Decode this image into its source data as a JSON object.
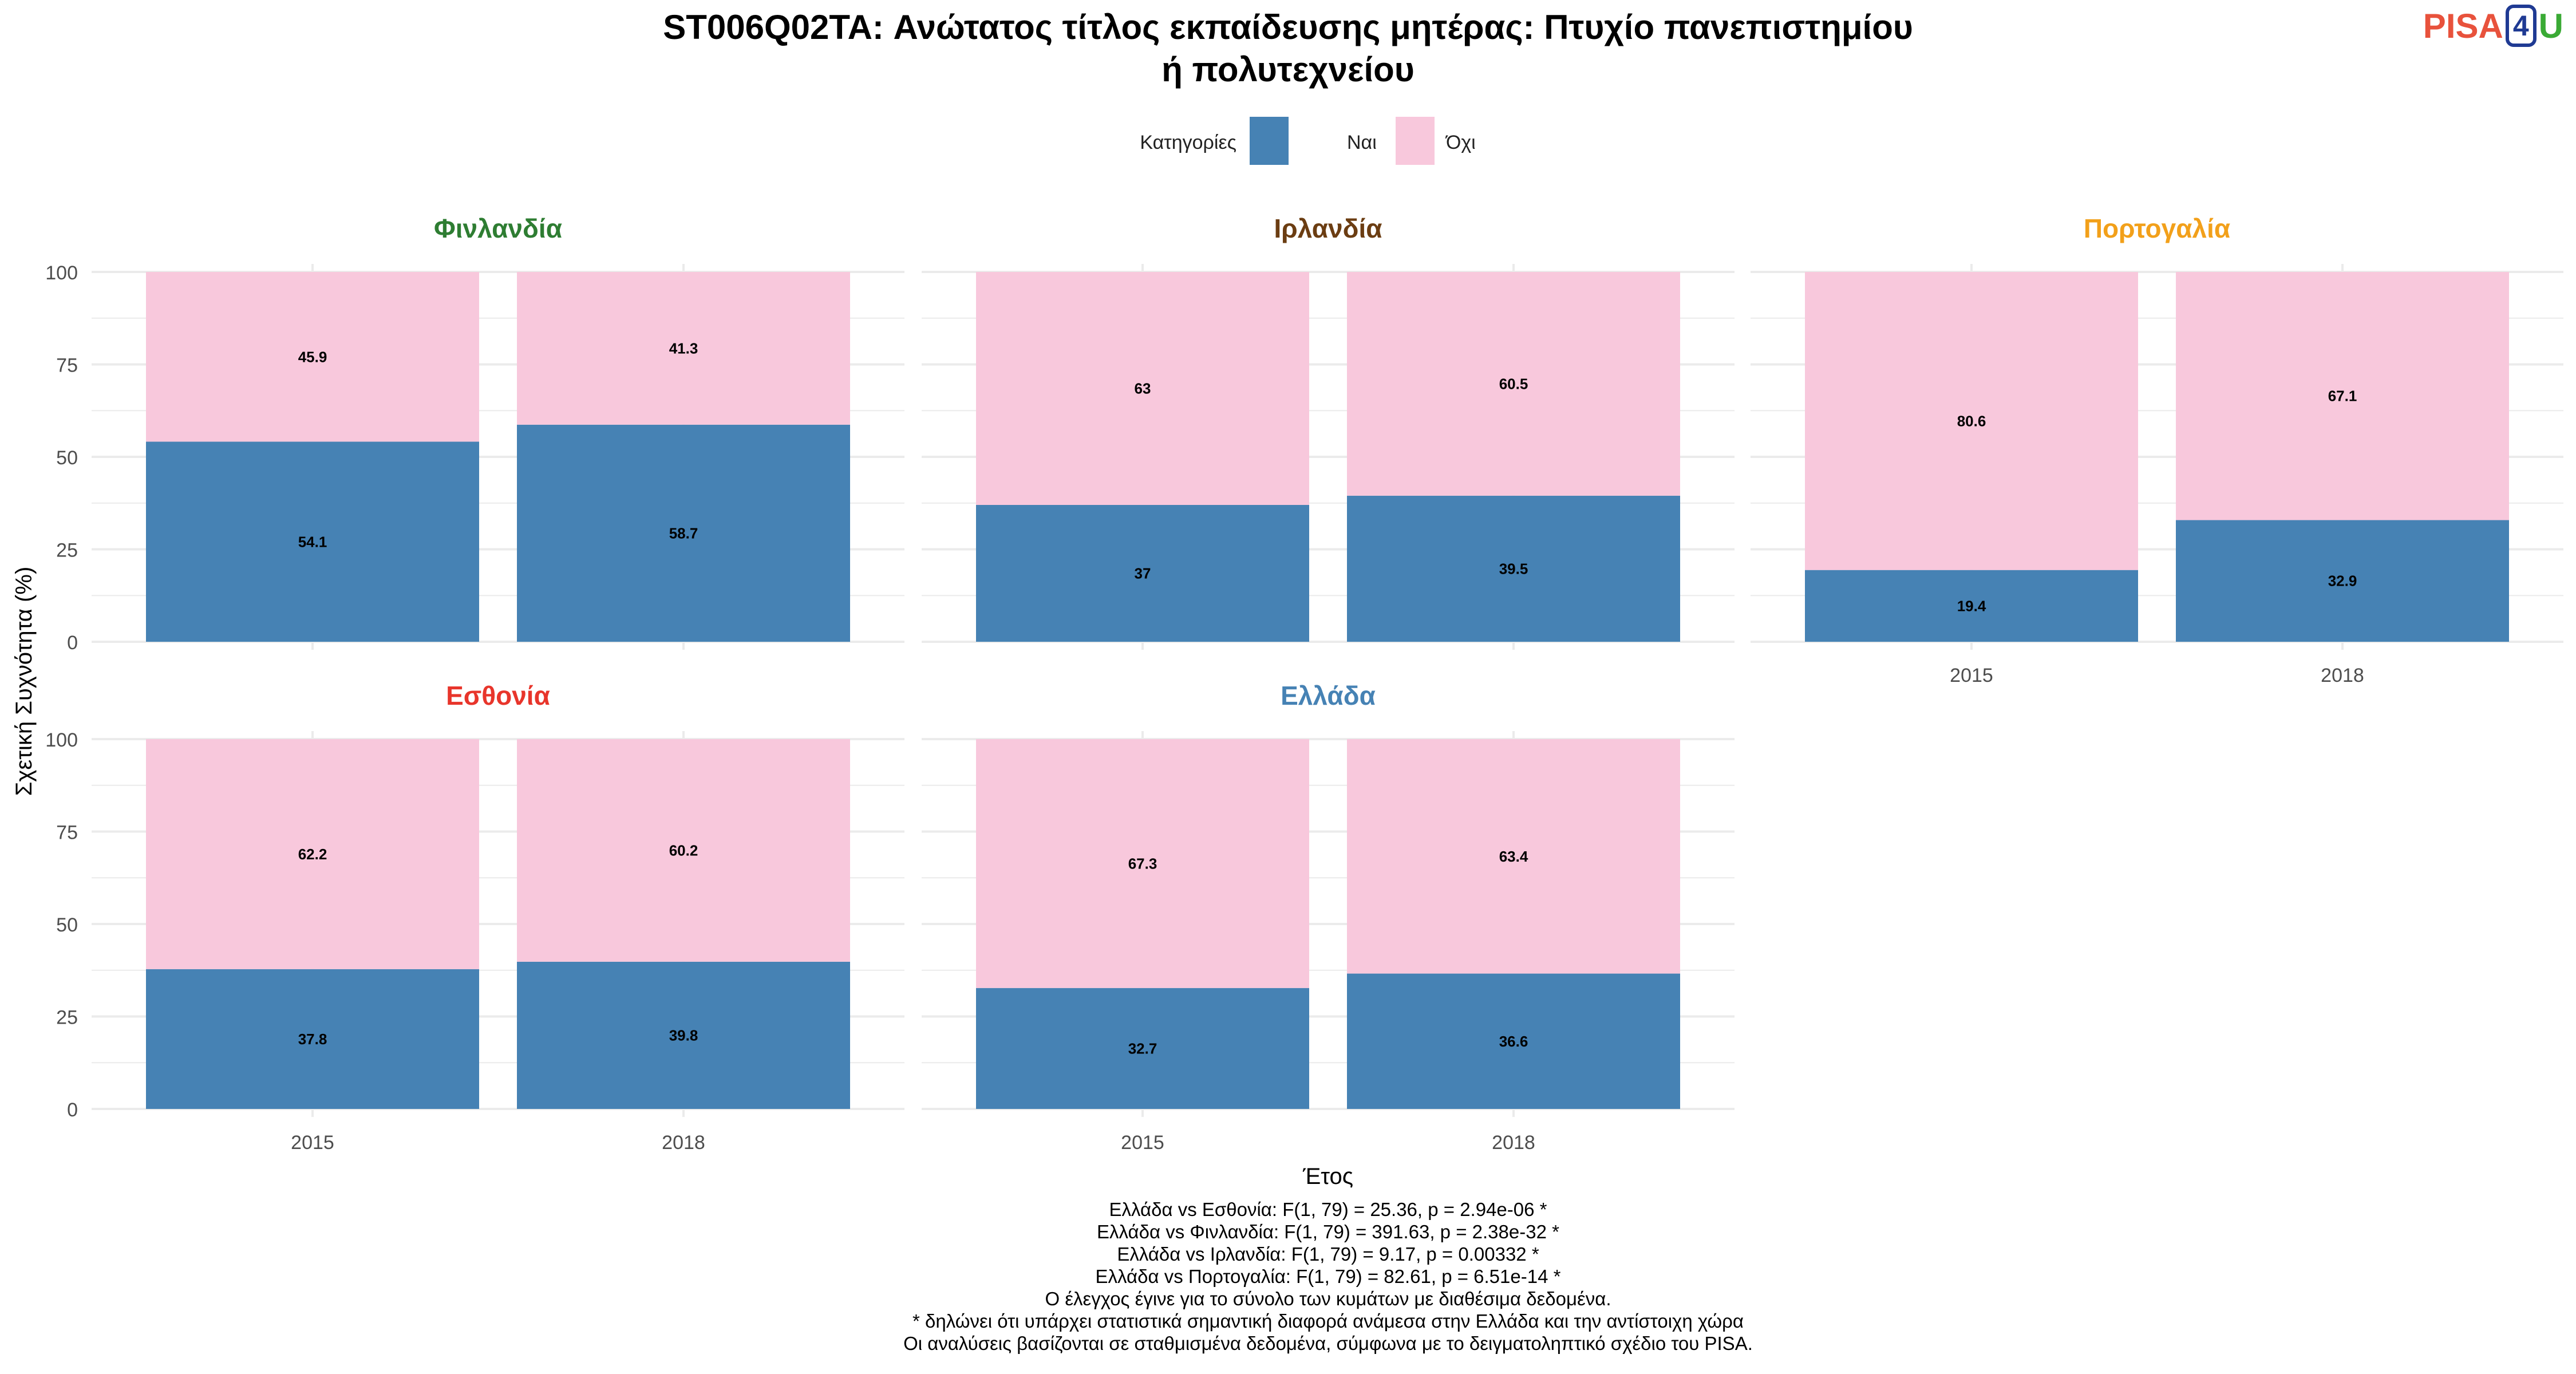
{
  "title_line1": "ST006Q02TA: Ανώτατος τίτλος εκπαίδευσης μητέρας: Πτυχίο πανεπιστημίου",
  "title_line2": "ή πολυτεχνείου",
  "logo": {
    "part1": "PISA",
    "part2": "4",
    "part3": "U"
  },
  "legend": {
    "title": "Κατηγορίες",
    "items": [
      {
        "label": "Ναι",
        "color": "#4682b4"
      },
      {
        "label": "Όχι",
        "color": "#f8c8dc"
      }
    ]
  },
  "colors": {
    "yes": "#4682b4",
    "no": "#f8c8dc",
    "grid": "#ebebeb",
    "text": "#4d4d4d"
  },
  "footnotes": [
    "Ελλάδα vs Εσθονία: F(1, 79) = 25.36, p = 2.94e-06 *",
    "Ελλάδα vs Φινλανδία: F(1, 79) = 391.63, p = 2.38e-32 *",
    "Ελλάδα vs Ιρλανδία: F(1, 79) = 9.17, p = 0.00332 *",
    "Ελλάδα vs Πορτογαλία: F(1, 79) = 82.61, p = 6.51e-14 *",
    "Ο έλεγχος έγινε για το σύνολο των κυμάτων με διαθέσιμα δεδομένα.",
    "* δηλώνει ότι υπάρχει στατιστικά σημαντική διαφορά ανάμεσα στην Ελλάδα και την αντίστοιχη χώρα",
    "Οι αναλύσεις βασίζονται σε σταθμισμένα δεδομένα, σύμφωνα με το δειγματοληπτικό σχέδιο του PISA."
  ],
  "chart_data": {
    "type": "bar",
    "stacked": true,
    "xlabel": "Έτος",
    "ylabel": "Σχετική Συχνότητα (%)",
    "ylim": [
      0,
      100
    ],
    "yticks": [
      0,
      25,
      50,
      75,
      100
    ],
    "categories": [
      "2015",
      "2018"
    ],
    "grid": true,
    "legend_position": "top",
    "panels": [
      {
        "name": "Φινλανδία",
        "title_color": "#2e7d32",
        "series": [
          {
            "name": "Ναι",
            "values": [
              54.1,
              58.7
            ]
          },
          {
            "name": "Όχι",
            "values": [
              45.9,
              41.3
            ]
          }
        ]
      },
      {
        "name": "Ιρλανδία",
        "title_color": "#6b3d12",
        "series": [
          {
            "name": "Ναι",
            "values": [
              37,
              39.5
            ]
          },
          {
            "name": "Όχι",
            "values": [
              63,
              60.5
            ]
          }
        ]
      },
      {
        "name": "Πορτογαλία",
        "title_color": "#f2a01a",
        "series": [
          {
            "name": "Ναι",
            "values": [
              19.4,
              32.9
            ]
          },
          {
            "name": "Όχι",
            "values": [
              80.6,
              67.1
            ]
          }
        ]
      },
      {
        "name": "Εσθονία",
        "title_color": "#e8352b",
        "series": [
          {
            "name": "Ναι",
            "values": [
              37.8,
              39.8
            ]
          },
          {
            "name": "Όχι",
            "values": [
              62.2,
              60.2
            ]
          }
        ]
      },
      {
        "name": "Ελλάδα",
        "title_color": "#4682b4",
        "series": [
          {
            "name": "Ναι",
            "values": [
              32.7,
              36.6
            ]
          },
          {
            "name": "Όχι",
            "values": [
              67.3,
              63.4
            ]
          }
        ]
      }
    ]
  }
}
